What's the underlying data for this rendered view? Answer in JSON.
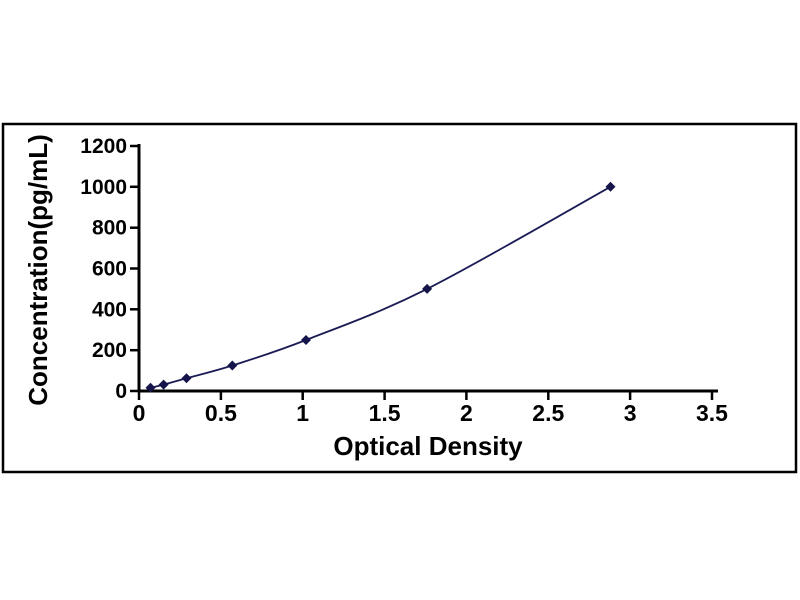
{
  "chart_data": {
    "type": "scatter",
    "title": "",
    "xlabel": "Optical Density",
    "ylabel": "Concentration(pg/mL)",
    "x": [
      0.07,
      0.15,
      0.29,
      0.57,
      1.02,
      1.76,
      2.88
    ],
    "y": [
      15.6,
      31.2,
      62.5,
      125,
      250,
      500,
      1000
    ],
    "xlim": [
      0,
      3.5
    ],
    "ylim": [
      0,
      1200
    ],
    "x_ticks": [
      0,
      0.5,
      1,
      1.5,
      2,
      2.5,
      3,
      3.5
    ],
    "x_tick_labels": [
      "0",
      "0.5",
      "1",
      "1.5",
      "2",
      "2.5",
      "3",
      "3.5"
    ],
    "y_ticks": [
      0,
      200,
      400,
      600,
      800,
      1000,
      1200
    ],
    "y_tick_labels": [
      "0",
      "200",
      "400",
      "600",
      "800",
      "1000",
      "1200"
    ],
    "grid": false,
    "legend": "none",
    "line_style": "smooth",
    "marker": "diamond",
    "line_color": "#1b1b55",
    "marker_color": "#14144a"
  },
  "colors": {
    "background": "#ffffff",
    "frame_border": "#000000",
    "axis": "#000000",
    "text": "#000000"
  }
}
